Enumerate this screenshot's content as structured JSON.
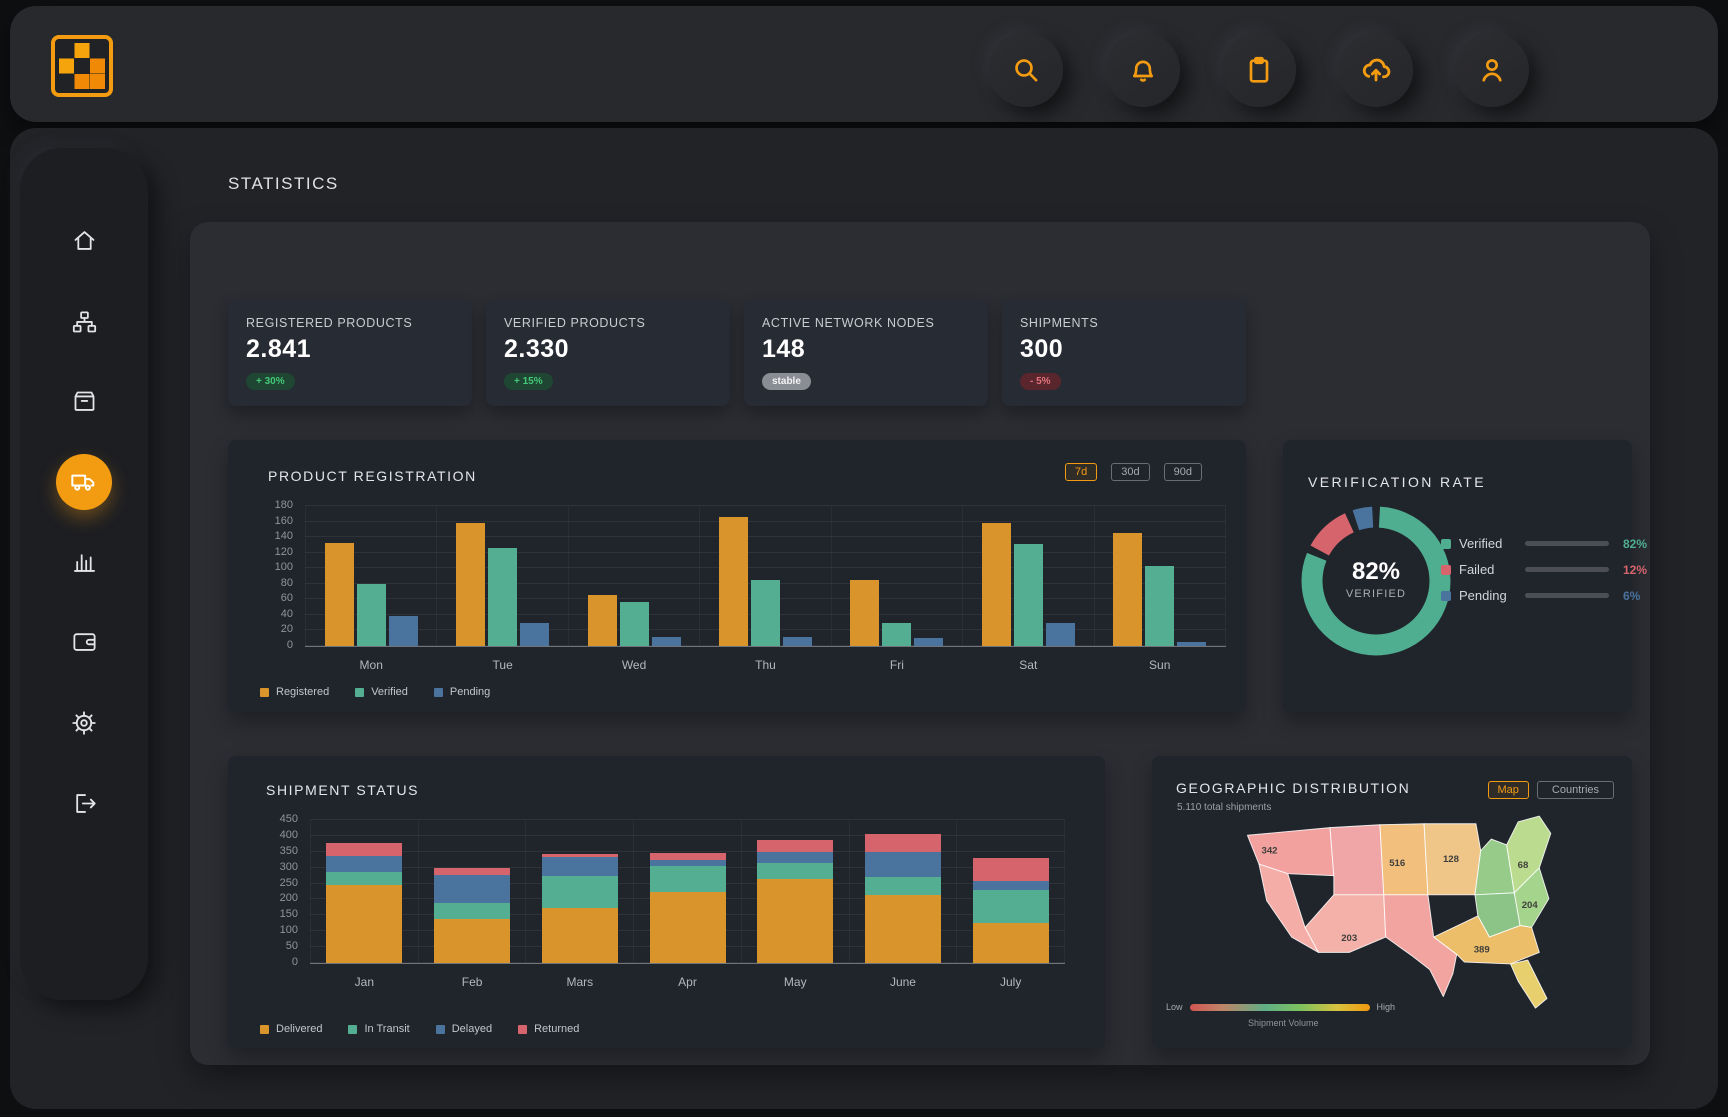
{
  "page": {
    "title": "STATISTICS"
  },
  "topbar": {
    "icons": [
      {
        "name": "search"
      },
      {
        "name": "notifications"
      },
      {
        "name": "clipboard"
      },
      {
        "name": "cloud-upload"
      },
      {
        "name": "profile"
      }
    ]
  },
  "sidebar": {
    "items": [
      {
        "name": "home"
      },
      {
        "name": "network"
      },
      {
        "name": "inventory"
      },
      {
        "name": "shipments",
        "active": true
      },
      {
        "name": "analytics"
      },
      {
        "name": "wallet"
      },
      {
        "name": "settings"
      },
      {
        "name": "logout"
      }
    ]
  },
  "stats": [
    {
      "label": "REGISTERED PRODUCTS",
      "value": "2.841",
      "badge": "+ 30%",
      "badge_type": "positive"
    },
    {
      "label": "VERIFIED PRODUCTS",
      "value": "2.330",
      "badge": "+ 15%",
      "badge_type": "positive"
    },
    {
      "label": "ACTIVE NETWORK NODES",
      "value": "148",
      "badge": "stable",
      "badge_type": "neutral"
    },
    {
      "label": "SHIPMENTS",
      "value": "300",
      "badge": "- 5%",
      "badge_type": "negative"
    }
  ],
  "product_registration": {
    "title": "PRODUCT REGISTRATION",
    "ranges": [
      {
        "label": "7d",
        "active": true
      },
      {
        "label": "30d",
        "active": false
      },
      {
        "label": "90d",
        "active": false
      }
    ],
    "chart": {
      "type": "bar",
      "categories": [
        "Mon",
        "Tue",
        "Wed",
        "Thu",
        "Fri",
        "Sat",
        "Sun"
      ],
      "series": [
        {
          "name": "Registered",
          "color": "#D9952B",
          "values": [
            132,
            158,
            65,
            166,
            85,
            158,
            145
          ]
        },
        {
          "name": "Verified",
          "color": "#53AE92",
          "values": [
            80,
            126,
            56,
            85,
            30,
            131,
            103
          ]
        },
        {
          "name": "Pending",
          "color": "#4A739D",
          "values": [
            38,
            30,
            12,
            12,
            10,
            29,
            5
          ]
        }
      ],
      "ylim": [
        0,
        180
      ],
      "ystep": 20
    }
  },
  "verification": {
    "title": "VERIFICATION RATE",
    "center_value": "82%",
    "center_label": "VERIFIED",
    "items": [
      {
        "label": "Verified",
        "pct": 82,
        "display": "82%",
        "color": "#4FAE90"
      },
      {
        "label": "Failed",
        "pct": 12,
        "display": "12%",
        "color": "#D6646C"
      },
      {
        "label": "Pending",
        "pct": 6,
        "display": "6%",
        "color": "#4A739D"
      }
    ]
  },
  "shipment_status": {
    "title": "SHIPMENT STATUS",
    "chart": {
      "type": "stacked-bar",
      "categories": [
        "Jan",
        "Feb",
        "Mars",
        "Apr",
        "May",
        "June",
        "July"
      ],
      "series": [
        {
          "name": "Delivered",
          "color": "#D9952B",
          "values": [
            245,
            140,
            172,
            225,
            265,
            215,
            125
          ]
        },
        {
          "name": "In Transit",
          "color": "#53AE92",
          "values": [
            40,
            50,
            102,
            80,
            50,
            55,
            105
          ]
        },
        {
          "name": "Delayed",
          "color": "#4A739D",
          "values": [
            52,
            88,
            60,
            20,
            35,
            80,
            27
          ]
        },
        {
          "name": "Returned",
          "color": "#D6646C",
          "values": [
            40,
            20,
            8,
            20,
            36,
            57,
            75
          ]
        }
      ],
      "ylim": [
        0,
        450
      ],
      "ystep": 50
    }
  },
  "geo": {
    "title": "GEOGRAPHIC DISTRIBUTION",
    "subtitle": "5.110 total shipments",
    "buttons": [
      {
        "label": "Map",
        "active": true
      },
      {
        "label": "Countries",
        "active": false
      }
    ],
    "regions": [
      {
        "value": "342"
      },
      {
        "value": "516"
      },
      {
        "value": "128"
      },
      {
        "value": "68"
      },
      {
        "value": "204"
      },
      {
        "value": "203"
      },
      {
        "value": "389"
      }
    ],
    "scale": {
      "low": "Low",
      "high": "High",
      "label": "Shipment Volume"
    }
  }
}
